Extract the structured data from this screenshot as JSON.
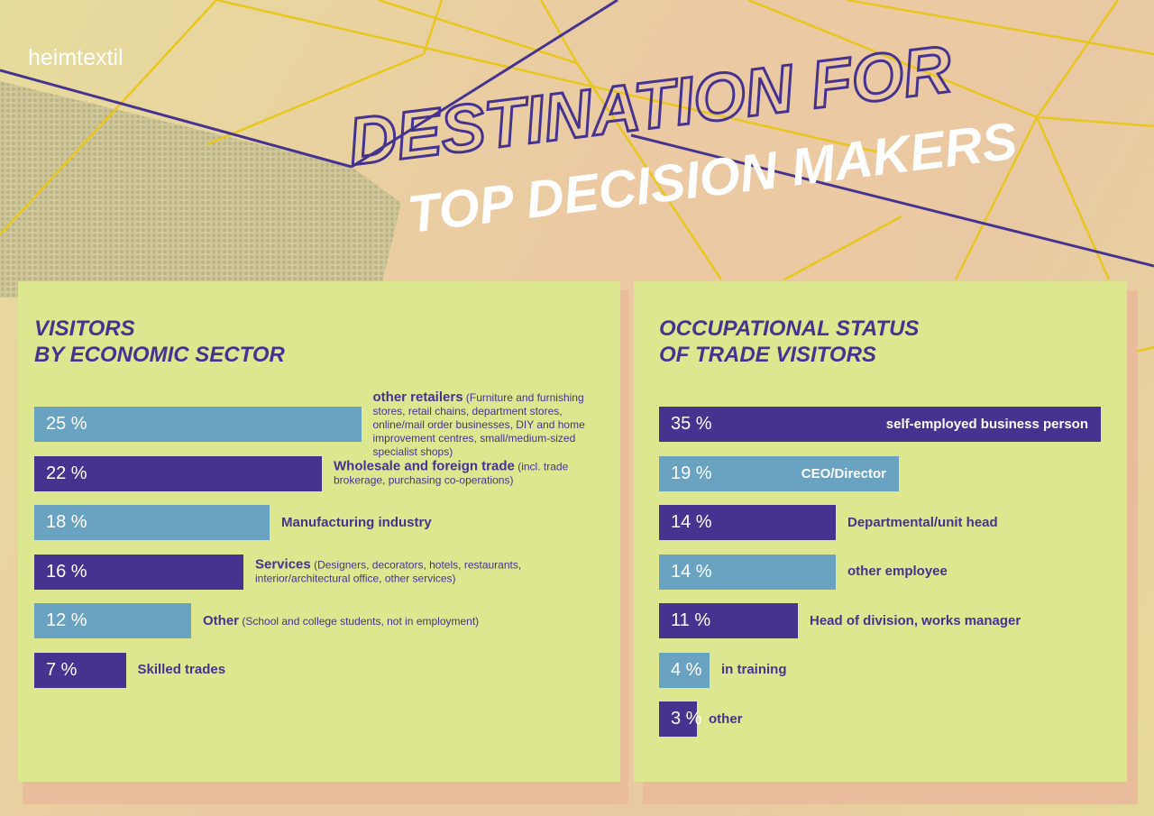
{
  "header": {
    "brand": "heimtextil",
    "title": "DESTINATION FOR",
    "subtitle": "TOP DECISION MAKERS"
  },
  "chart_data": [
    {
      "type": "bar",
      "orientation": "horizontal",
      "title": [
        "VISITORS",
        "BY ECONOMIC SECTOR"
      ],
      "categories": [
        "other retailers",
        "Wholesale and foreign trade",
        "Manufacturing industry",
        "Services",
        "Other",
        "Skilled trades"
      ],
      "category_notes": [
        "(Furniture and furnishing stores, retail chains, department stores, online/mail order businesses, DIY and home improvement centres, small/medium-sized specialist shops)",
        "(incl. trade brokerage, purchasing co-operations)",
        null,
        "(Designers, decorators, hotels, restaurants, interior/architectural office, other services)",
        "(School and college students, not in employment)",
        null
      ],
      "values": [
        25,
        22,
        18,
        16,
        12,
        7
      ],
      "value_labels": [
        "25 %",
        "22 %",
        "18 %",
        "16 %",
        "12 %",
        "7 %"
      ],
      "colors": [
        "#6aa3c2",
        "#45338f",
        "#6aa3c2",
        "#45338f",
        "#6aa3c2",
        "#45338f"
      ]
    },
    {
      "type": "bar",
      "orientation": "horizontal",
      "title": [
        "OCCUPATIONAL STATUS",
        "OF TRADE VISITORS"
      ],
      "categories": [
        "self-employed business person",
        "CEO/Director",
        "Departmental/unit head",
        "other employee",
        "Head of division, works manager",
        "in training",
        "other"
      ],
      "values": [
        35,
        19,
        14,
        14,
        11,
        4,
        3
      ],
      "value_labels": [
        "35 %",
        "19 %",
        "14 %",
        "14 %",
        "11 %",
        "4 %",
        "3 %"
      ],
      "colors": [
        "#45338f",
        "#6aa3c2",
        "#45338f",
        "#6aa3c2",
        "#45338f",
        "#6aa3c2",
        "#45338f"
      ]
    }
  ]
}
